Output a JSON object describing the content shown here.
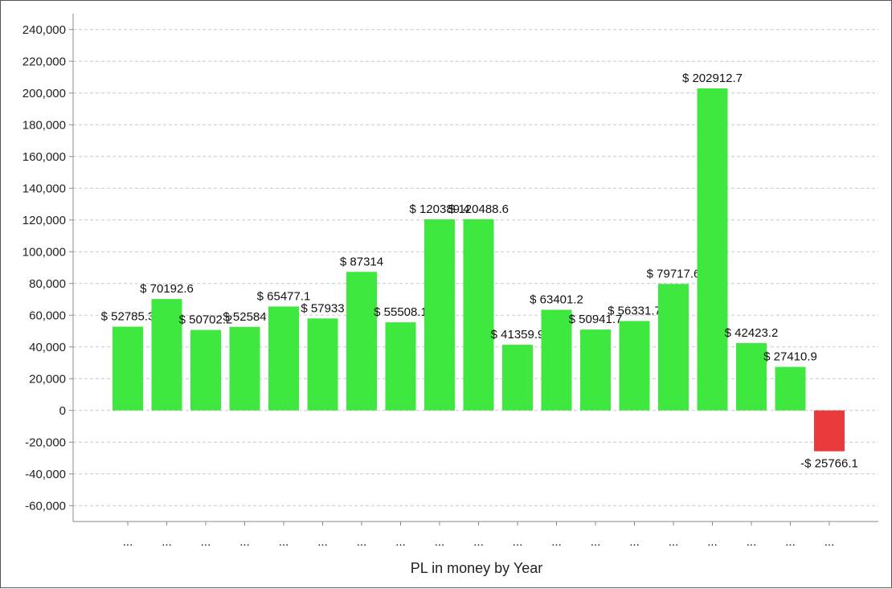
{
  "chart_data": {
    "type": "bar",
    "title": "",
    "xlabel": "PL in money by Year",
    "ylabel": "",
    "ylim": [
      -70000,
      250000
    ],
    "yticks": [
      240000,
      220000,
      200000,
      180000,
      160000,
      140000,
      120000,
      100000,
      80000,
      60000,
      40000,
      20000,
      0,
      -20000,
      -40000,
      -60000
    ],
    "ytick_labels": [
      "240,000",
      "220,000",
      "200,000",
      "180,000",
      "160,000",
      "140,000",
      "120,000",
      "100,000",
      "80,000",
      "60,000",
      "40,000",
      "20,000",
      "0",
      "-20,000",
      "-40,000",
      "-60,000"
    ],
    "grid": true,
    "legend": "none",
    "categories": [
      "...",
      "...",
      "...",
      "...",
      "...",
      "...",
      "...",
      "...",
      "...",
      "...",
      "...",
      "...",
      "...",
      "...",
      "...",
      "...",
      "...",
      "...",
      "..."
    ],
    "values": [
      52785.3,
      70192.6,
      50702.2,
      52584,
      65477.1,
      57933,
      87314,
      55508.1,
      120389.4,
      120488.6,
      41359.9,
      63401.2,
      50941.7,
      56331.7,
      79717.6,
      202912.7,
      42423.2,
      27410.9,
      -25766.1
    ],
    "data_labels": [
      "$ 52785.3",
      "$ 70192.6",
      "$ 50702.2",
      "$ 52584",
      "$ 65477.1",
      "$ 57933",
      "$ 87314",
      "$ 55508.1",
      "$ 120389.4",
      "$ 120488.6",
      "$ 41359.9",
      "$ 63401.2",
      "$ 50941.7",
      "$ 56331.7",
      "$ 79717.6",
      "$ 202912.7",
      "$ 42423.2",
      "$ 27410.9",
      "-$ 25766.1"
    ],
    "colors": {
      "positive": "#3ee83e",
      "negative": "#e83a3a",
      "grid": "#c8c8c8",
      "axis": "#888888"
    }
  }
}
